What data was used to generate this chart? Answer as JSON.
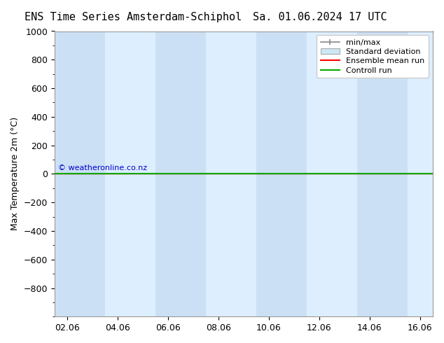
{
  "title_left": "ENS Time Series Amsterdam-Schiphol",
  "title_right": "Sa. 01.06.2024 17 UTC",
  "ylabel": "Max Temperature 2m (°C)",
  "xlabel": "",
  "ylim_top": -1000,
  "ylim_bottom": 1000,
  "yticks": [
    -800,
    -600,
    -400,
    -200,
    0,
    200,
    400,
    600,
    800,
    1000
  ],
  "xtick_labels": [
    "02.06",
    "04.06",
    "06.06",
    "08.06",
    "10.06",
    "12.06",
    "14.06",
    "16.06"
  ],
  "xtick_positions": [
    0,
    2,
    4,
    6,
    8,
    10,
    12,
    14
  ],
  "x_min": -0.5,
  "x_max": 14.5,
  "bg_color": "#ffffff",
  "plot_bg_color": "#ddeeff",
  "stripe_color": "#cce0f5",
  "stripe_positions": [
    [
      -0.5,
      1.5
    ],
    [
      3.5,
      5.5
    ],
    [
      7.5,
      9.5
    ],
    [
      11.5,
      13.5
    ]
  ],
  "green_line_y": 0,
  "green_line_color": "#00aa00",
  "red_line_color": "#ff0000",
  "watermark": "© weatheronline.co.nz",
  "watermark_color": "#0000cc",
  "legend_entries": [
    "min/max",
    "Standard deviation",
    "Ensemble mean run",
    "Controll run"
  ],
  "legend_colors": [
    "#aaaaaa",
    "#ccddee",
    "#ff0000",
    "#00aa00"
  ],
  "title_fontsize": 11,
  "axis_fontsize": 9,
  "tick_fontsize": 9
}
